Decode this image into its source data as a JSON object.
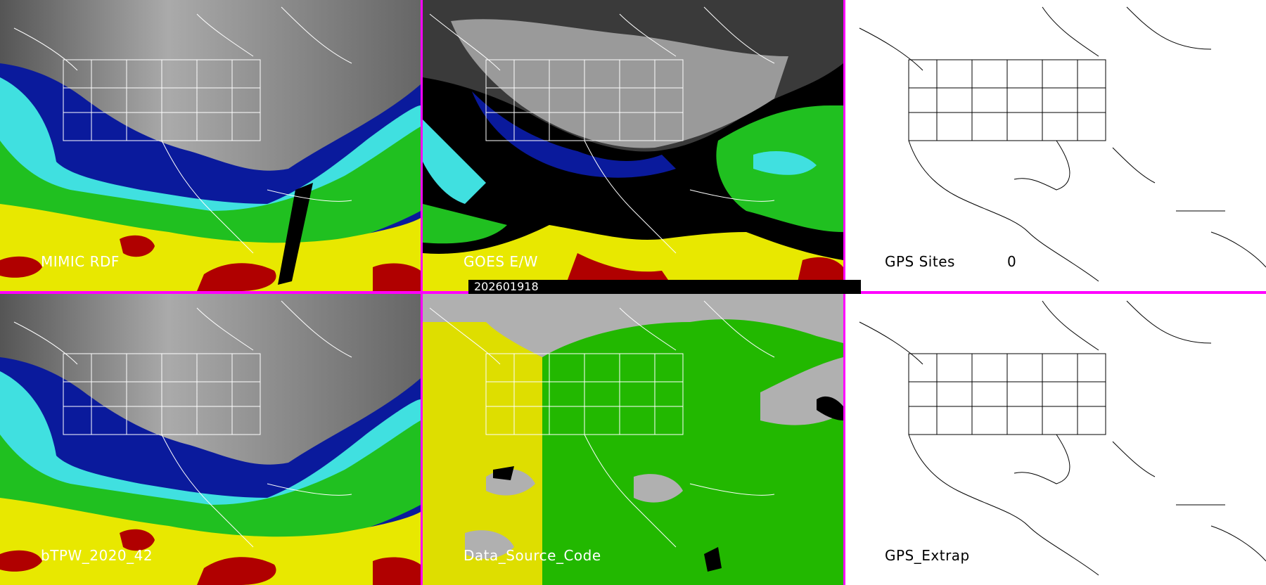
{
  "panels": {
    "mimic": {
      "label": "MIMIC RDF"
    },
    "goes": {
      "label": "GOES E/W"
    },
    "gps_sites": {
      "label": "GPS Sites",
      "count": "0"
    },
    "btpw": {
      "label": "bTPW_2020_42"
    },
    "data_source": {
      "label": "Data_Source_Code"
    },
    "gps_extrap": {
      "label": "GPS_Extrap"
    }
  },
  "timestamp": "202601918",
  "colors": {
    "separator": "#ff00ff",
    "low_moisture": "#808080",
    "deep_blue": "#0a1a9c",
    "cyan": "#40e0e0",
    "green": "#20c020",
    "yellow": "#e8e800",
    "dark_red": "#b00000",
    "source_yellow": "#dede00",
    "source_green": "#22b800",
    "source_gray": "#b0b0b0"
  }
}
